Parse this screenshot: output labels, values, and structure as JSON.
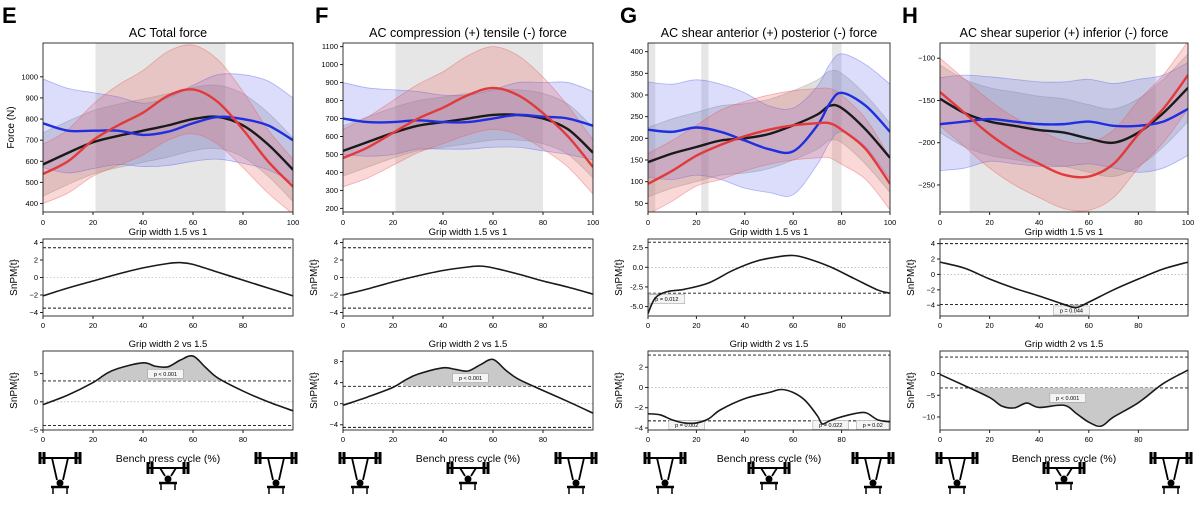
{
  "xlabel": "Bench press cycle (%)",
  "colors": {
    "black_line": "#1a1a1a",
    "blue_line": "#1f2fe0",
    "red_line": "#e23a3a",
    "blue_band": "rgba(90,100,235,0.22)",
    "red_band": "rgba(235,90,90,0.24)",
    "gray_band": "rgba(150,150,150,0.30)",
    "sig_region": "#e6e6e6"
  },
  "chart_data": [
    {
      "panel": "E",
      "type": "line",
      "title": "AC Total force",
      "ylabel": "Force (N)",
      "xlim": [
        0,
        100
      ],
      "ylim": [
        360,
        1160
      ],
      "xticks": [
        0,
        20,
        40,
        60,
        80,
        100
      ],
      "yticks": [
        400,
        500,
        600,
        700,
        800,
        900,
        1000
      ],
      "sig_regions": [
        [
          21,
          73
        ]
      ],
      "x": [
        0,
        10,
        20,
        30,
        40,
        50,
        60,
        70,
        80,
        90,
        100
      ],
      "series": [
        {
          "color": "black",
          "values": [
            585,
            640,
            690,
            720,
            745,
            770,
            800,
            810,
            770,
            680,
            560
          ],
          "sd": [
            150,
            150,
            150,
            150,
            150,
            150,
            150,
            150,
            150,
            150,
            150
          ]
        },
        {
          "color": "blue",
          "values": [
            780,
            745,
            745,
            745,
            725,
            740,
            780,
            810,
            800,
            770,
            700
          ],
          "sd": [
            210,
            200,
            180,
            160,
            150,
            160,
            180,
            200,
            210,
            210,
            200
          ]
        },
        {
          "color": "red",
          "values": [
            540,
            600,
            700,
            770,
            830,
            910,
            940,
            880,
            750,
            600,
            480
          ],
          "sd": [
            140,
            150,
            170,
            190,
            200,
            210,
            210,
            200,
            180,
            150,
            130
          ]
        }
      ],
      "spm1": {
        "title": "Grip width 1.5 vs 1",
        "ylabel": "SnPM{t}",
        "ylim": [
          -4.4,
          4.4
        ],
        "yticks": [
          -4,
          -2,
          0,
          2,
          4
        ],
        "xticks": [
          0,
          20,
          40,
          60,
          80
        ],
        "thresholds": [
          3.4,
          -3.5
        ],
        "x": [
          0,
          10,
          20,
          30,
          40,
          50,
          55,
          60,
          70,
          80,
          90,
          100
        ],
        "values": [
          -2.1,
          -1.2,
          -0.4,
          0.4,
          1.1,
          1.6,
          1.7,
          1.5,
          0.6,
          -0.3,
          -1.2,
          -2.1
        ],
        "clusters": []
      },
      "spm2": {
        "title": "Grip width 2 vs 1.5",
        "ylabel": "SnPM{t}",
        "ylim": [
          -5,
          9
        ],
        "yticks": [
          -5,
          0,
          5
        ],
        "xticks": [
          0,
          20,
          40,
          60,
          80
        ],
        "thresholds": [
          3.7,
          -4.2
        ],
        "x": [
          0,
          10,
          20,
          25,
          30,
          40,
          45,
          50,
          55,
          60,
          65,
          70,
          80,
          90,
          100
        ],
        "values": [
          -0.5,
          1.2,
          3.4,
          4.9,
          5.9,
          6.9,
          6.3,
          6.2,
          7.4,
          8.1,
          6.1,
          4.2,
          1.9,
          0.0,
          -1.6
        ],
        "clusters": [
          {
            "range": [
              22,
              76
            ],
            "p": "p < 0.001"
          }
        ]
      }
    },
    {
      "panel": "F",
      "type": "line",
      "title": "AC compression (+) tensile (-) force",
      "ylabel": "",
      "xlim": [
        0,
        100
      ],
      "ylim": [
        180,
        1120
      ],
      "xticks": [
        0,
        20,
        40,
        60,
        80,
        100
      ],
      "yticks": [
        200,
        300,
        400,
        500,
        600,
        700,
        800,
        900,
        1000,
        1100
      ],
      "sig_regions": [
        [
          21,
          80
        ]
      ],
      "x": [
        0,
        10,
        20,
        30,
        40,
        50,
        60,
        70,
        80,
        90,
        100
      ],
      "series": [
        {
          "color": "black",
          "values": [
            520,
            570,
            620,
            660,
            680,
            700,
            720,
            720,
            700,
            640,
            510
          ],
          "sd": [
            140,
            140,
            140,
            140,
            140,
            140,
            140,
            140,
            140,
            140,
            140
          ]
        },
        {
          "color": "blue",
          "values": [
            700,
            680,
            680,
            690,
            680,
            680,
            700,
            720,
            710,
            700,
            660
          ],
          "sd": [
            200,
            190,
            180,
            160,
            150,
            150,
            160,
            180,
            190,
            200,
            190
          ]
        },
        {
          "color": "red",
          "values": [
            480,
            540,
            620,
            700,
            760,
            830,
            870,
            830,
            730,
            600,
            430
          ],
          "sd": [
            160,
            170,
            180,
            190,
            200,
            220,
            230,
            220,
            200,
            170,
            150
          ]
        }
      ],
      "spm1": {
        "title": "Grip width 1.5 vs 1",
        "ylabel": "SnPM{t}",
        "ylim": [
          -4.4,
          4.4
        ],
        "yticks": [
          -4,
          -2,
          0,
          2,
          4
        ],
        "xticks": [
          0,
          20,
          40,
          60,
          80
        ],
        "thresholds": [
          3.4,
          -3.5
        ],
        "x": [
          0,
          10,
          20,
          30,
          40,
          50,
          55,
          60,
          70,
          80,
          90,
          100
        ],
        "values": [
          -2.0,
          -1.3,
          -0.5,
          0.2,
          0.8,
          1.2,
          1.3,
          1.1,
          0.4,
          -0.4,
          -1.1,
          -1.9
        ],
        "clusters": []
      },
      "spm2": {
        "title": "Grip width 2 vs 1.5",
        "ylabel": "SnPM{t}",
        "ylim": [
          -5,
          10
        ],
        "yticks": [
          -4,
          0,
          4,
          8
        ],
        "xticks": [
          0,
          20,
          40,
          60,
          80
        ],
        "thresholds": [
          3.3,
          -4.5
        ],
        "x": [
          0,
          10,
          20,
          25,
          30,
          40,
          45,
          50,
          55,
          60,
          65,
          70,
          80,
          90,
          100
        ],
        "values": [
          -0.3,
          1.3,
          3.1,
          4.5,
          5.6,
          6.8,
          6.5,
          6.2,
          7.4,
          8.4,
          6.4,
          4.7,
          2.5,
          0.4,
          -1.8
        ],
        "clusters": [
          {
            "range": [
              24,
              78
            ],
            "p": "p < 0.001"
          }
        ]
      }
    },
    {
      "panel": "G",
      "type": "line",
      "title": "AC shear anterior (+) posterior (-) force",
      "ylabel": "",
      "xlim": [
        0,
        100
      ],
      "ylim": [
        30,
        420
      ],
      "xticks": [
        0,
        20,
        40,
        60,
        80,
        100
      ],
      "yticks": [
        50,
        100,
        150,
        200,
        250,
        300,
        350,
        400
      ],
      "sig_regions": [
        [
          0,
          3
        ],
        [
          22,
          25
        ],
        [
          76,
          80
        ]
      ],
      "x": [
        0,
        10,
        20,
        30,
        40,
        50,
        60,
        70,
        75,
        80,
        90,
        100
      ],
      "series": [
        {
          "color": "black",
          "values": [
            145,
            165,
            180,
            195,
            200,
            210,
            230,
            255,
            275,
            270,
            220,
            155
          ],
          "sd": [
            80,
            80,
            80,
            80,
            80,
            80,
            80,
            80,
            80,
            80,
            80,
            80
          ]
        },
        {
          "color": "blue",
          "values": [
            220,
            215,
            225,
            215,
            195,
            175,
            170,
            230,
            280,
            305,
            275,
            215
          ],
          "sd": [
            110,
            110,
            110,
            110,
            110,
            100,
            100,
            90,
            90,
            90,
            95,
            110
          ]
        },
        {
          "color": "red",
          "values": [
            95,
            125,
            160,
            185,
            205,
            220,
            230,
            235,
            235,
            220,
            175,
            95
          ],
          "sd": [
            70,
            70,
            70,
            80,
            80,
            80,
            80,
            80,
            80,
            80,
            70,
            60
          ]
        }
      ],
      "spm1": {
        "title": "Grip width 1.5 vs 1",
        "ylabel": "SnPM{t}",
        "ylim": [
          -6.2,
          3.6
        ],
        "yticks": [
          -5.0,
          -2.5,
          0.0,
          2.5
        ],
        "yticklabels": [
          "-5.0",
          "-2.5",
          "0.0",
          "2.5"
        ],
        "xticks": [
          0,
          20,
          40,
          60,
          80
        ],
        "thresholds": [
          3.2,
          -3.3
        ],
        "x": [
          0,
          3,
          8,
          15,
          25,
          35,
          45,
          55,
          60,
          65,
          75,
          85,
          95,
          100
        ],
        "values": [
          -5.9,
          -3.9,
          -3.1,
          -2.8,
          -2.0,
          -0.4,
          0.8,
          1.4,
          1.5,
          1.2,
          0.1,
          -1.4,
          -2.9,
          -3.3
        ],
        "clusters": [
          {
            "range": [
              0,
              4
            ],
            "p": "p = 0.012"
          }
        ]
      },
      "spm2": {
        "title": "Grip width 2 vs 1.5",
        "ylabel": "SnPM{t}",
        "ylim": [
          -4.2,
          3.6
        ],
        "yticks": [
          -4,
          -2,
          0,
          2
        ],
        "xticks": [
          0,
          20,
          40,
          60,
          80
        ],
        "thresholds": [
          3.2,
          -3.3
        ],
        "x": [
          0,
          5,
          10,
          15,
          20,
          25,
          30,
          40,
          50,
          55,
          60,
          65,
          70,
          72,
          75,
          80,
          85,
          90,
          95,
          100
        ],
        "values": [
          -2.6,
          -2.7,
          -3.2,
          -3.5,
          -3.5,
          -3.1,
          -2.2,
          -1.1,
          -0.5,
          -0.2,
          -0.5,
          -1.3,
          -2.8,
          -3.6,
          -3.3,
          -2.9,
          -2.6,
          -2.5,
          -3.2,
          -3.4
        ],
        "clusters": [
          {
            "range": [
              10,
              22
            ],
            "p": "p = 0.002"
          },
          {
            "range": [
              71,
              80
            ],
            "p": "p = 0.022"
          },
          {
            "range": [
              96,
              100
            ],
            "p": "p = 0.02"
          }
        ]
      }
    },
    {
      "panel": "H",
      "type": "line",
      "title": "AC shear superior (+) inferior (-) force",
      "ylabel": "",
      "xlim": [
        0,
        100
      ],
      "ylim": [
        -282,
        -82
      ],
      "xticks": [
        0,
        20,
        40,
        60,
        80,
        100
      ],
      "yticks": [
        -250,
        -200,
        -150,
        -100
      ],
      "sig_regions": [
        [
          12,
          87
        ]
      ],
      "x": [
        0,
        10,
        20,
        30,
        40,
        50,
        60,
        70,
        80,
        90,
        100
      ],
      "series": [
        {
          "color": "black",
          "values": [
            -148,
            -165,
            -175,
            -180,
            -185,
            -188,
            -195,
            -200,
            -188,
            -165,
            -135
          ],
          "sd": [
            40,
            40,
            40,
            40,
            40,
            40,
            40,
            40,
            40,
            40,
            40
          ]
        },
        {
          "color": "blue",
          "values": [
            -178,
            -175,
            -172,
            -175,
            -178,
            -178,
            -175,
            -180,
            -180,
            -175,
            -160
          ],
          "sd": [
            55,
            55,
            50,
            50,
            50,
            50,
            50,
            50,
            55,
            55,
            55
          ]
        },
        {
          "color": "red",
          "values": [
            -140,
            -165,
            -190,
            -210,
            -225,
            -238,
            -240,
            -225,
            -190,
            -160,
            -120
          ],
          "sd": [
            40,
            40,
            40,
            40,
            40,
            40,
            40,
            40,
            40,
            40,
            40
          ]
        }
      ],
      "spm1": {
        "title": "Grip width 1.5 vs 1",
        "ylabel": "SnPM{t}",
        "ylim": [
          -5.4,
          4.6
        ],
        "yticks": [
          -4,
          -2,
          0,
          2,
          4
        ],
        "xticks": [
          0,
          20,
          40,
          60,
          80
        ],
        "thresholds": [
          4.0,
          -3.9
        ],
        "x": [
          0,
          10,
          20,
          30,
          40,
          50,
          55,
          60,
          70,
          80,
          90,
          100
        ],
        "values": [
          1.6,
          0.8,
          -0.6,
          -1.8,
          -2.8,
          -3.9,
          -4.3,
          -3.6,
          -2.0,
          -0.6,
          0.7,
          1.6
        ],
        "clusters": [
          {
            "range": [
              48,
              58
            ],
            "p": "p = 0.044"
          }
        ]
      },
      "spm2": {
        "title": "Grip width 2 vs 1.5",
        "ylabel": "SnPM{t}",
        "ylim": [
          -13,
          5.2
        ],
        "yticks": [
          -10,
          -5,
          0
        ],
        "xticks": [
          0,
          20,
          40,
          60,
          80
        ],
        "thresholds": [
          3.8,
          -3.3
        ],
        "x": [
          0,
          10,
          20,
          25,
          30,
          35,
          40,
          50,
          55,
          60,
          65,
          70,
          80,
          90,
          100
        ],
        "values": [
          -0.2,
          -2.8,
          -5.5,
          -7.5,
          -7.9,
          -6.8,
          -7.8,
          -7.3,
          -9.2,
          -11.2,
          -12.1,
          -10.0,
          -6.7,
          -2.3,
          0.8
        ],
        "clusters": [
          {
            "range": [
              11,
              92
            ],
            "p": "p < 0.001"
          }
        ]
      }
    }
  ]
}
